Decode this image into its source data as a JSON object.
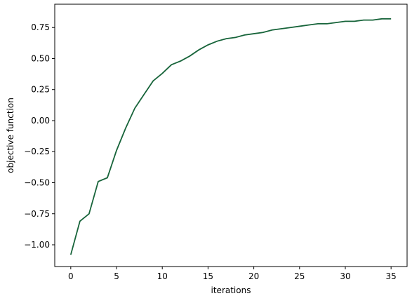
{
  "chart_data": {
    "type": "line",
    "x_label": "iterations",
    "y_label": "objective function",
    "x": [
      0,
      1,
      2,
      3,
      4,
      5,
      6,
      7,
      8,
      9,
      10,
      11,
      12,
      13,
      14,
      15,
      16,
      17,
      18,
      19,
      20,
      21,
      22,
      23,
      24,
      25,
      26,
      27,
      28,
      29,
      30,
      31,
      32,
      33,
      34,
      35
    ],
    "series": [
      {
        "color": "#17643a",
        "values": [
          -1.08,
          -0.81,
          -0.75,
          -0.49,
          -0.46,
          -0.24,
          -0.06,
          0.1,
          0.21,
          0.32,
          0.38,
          0.45,
          0.48,
          0.52,
          0.57,
          0.61,
          0.64,
          0.66,
          0.67,
          0.69,
          0.7,
          0.71,
          0.73,
          0.74,
          0.75,
          0.76,
          0.77,
          0.78,
          0.78,
          0.79,
          0.8,
          0.8,
          0.81,
          0.81,
          0.82,
          0.82
        ]
      }
    ],
    "xlim": [
      -1.75,
      36.75
    ],
    "xticks": [
      0,
      5,
      10,
      15,
      20,
      25,
      30,
      35
    ],
    "ylim": [
      -1.175,
      0.915
    ],
    "yticks": [
      {
        "value": -1,
        "label": "−1.00"
      },
      {
        "value": -0.75,
        "label": "−0.75"
      },
      {
        "value": -0.5,
        "label": "−0.50"
      },
      {
        "value": -0.25,
        "label": "−0.25"
      },
      {
        "value": 0,
        "label": "0.00"
      },
      {
        "value": 0.25,
        "label": "0.25"
      },
      {
        "value": 0.5,
        "label": "0.50"
      },
      {
        "value": 0.75,
        "label": "0.75"
      }
    ],
    "grid": false
  }
}
